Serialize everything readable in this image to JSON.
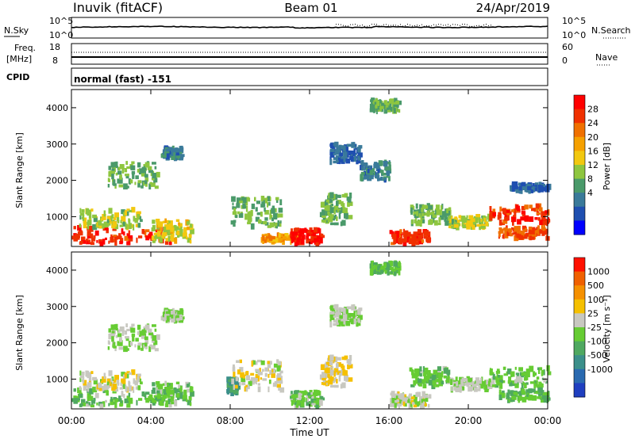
{
  "header": {
    "station": "Inuvik (fitACF)",
    "beam": "Beam 01",
    "date": "24/Apr/2019"
  },
  "sky_panel": {
    "left_label": "N.Sky",
    "right_label": "N.Search",
    "left_ticks": [
      "10^5",
      "10^0"
    ],
    "right_ticks": [
      "10^5",
      "10^0"
    ]
  },
  "freq_panel": {
    "left_label_1": "Freq.",
    "left_label_2": "[MHz]",
    "right_label": "Nave",
    "left_ticks": [
      "18",
      "8"
    ],
    "right_ticks": [
      "60",
      "0"
    ]
  },
  "cpid": {
    "label": "CPID",
    "value": "normal (fast) -151"
  },
  "power_panel": {
    "ylabel": "Slant Range [km]",
    "yticks": [
      "4000",
      "3000",
      "2000",
      "1000"
    ],
    "colorbar_label": "Power [dB]",
    "colorbar_ticks": [
      "28",
      "24",
      "20",
      "16",
      "12",
      "8",
      "4"
    ],
    "colors": [
      "#0000ff",
      "#1f4fb0",
      "#3a7a9a",
      "#4a9a6a",
      "#8ec63f",
      "#f2c80f",
      "#f5a000",
      "#f07000",
      "#f03000",
      "#ff0000"
    ]
  },
  "velocity_panel": {
    "ylabel": "Slant Range [km]",
    "yticks": [
      "4000",
      "3000",
      "2000",
      "1000"
    ],
    "colorbar_label": "Velocity [m s⁻¹]",
    "colorbar_ticks": [
      "1000",
      "500",
      "100",
      "25",
      "-25",
      "-100",
      "-500",
      "-1000"
    ],
    "colors": [
      "#1f3fc0",
      "#2a6ab0",
      "#3b8f8a",
      "#4fa860",
      "#66cc33",
      "#c8c8c0",
      "#f5c000",
      "#f59000",
      "#f06000",
      "#ff1000"
    ]
  },
  "xaxis": {
    "label": "Time UT",
    "ticks": [
      "00:00",
      "04:00",
      "08:00",
      "12:00",
      "16:00",
      "20:00",
      "00:00"
    ]
  },
  "chart_data": [
    {
      "type": "heatmap",
      "title": "Power [dB]",
      "xlabel": "Time UT",
      "ylabel": "Slant Range [km]",
      "xlim": [
        0,
        24
      ],
      "ylim": [
        180,
        4500
      ],
      "scale": [
        0,
        30
      ],
      "blobs": [
        {
          "t": [
            0.0,
            5.0
          ],
          "r": [
            250,
            700
          ],
          "value": 26
        },
        {
          "t": [
            0.3,
            3.5
          ],
          "r": [
            700,
            1200
          ],
          "value": 14
        },
        {
          "t": [
            4.0,
            6.0
          ],
          "r": [
            300,
            900
          ],
          "value": 16
        },
        {
          "t": [
            1.8,
            4.3
          ],
          "r": [
            1800,
            2500
          ],
          "value": 12
        },
        {
          "t": [
            4.5,
            5.5
          ],
          "r": [
            2600,
            2900
          ],
          "value": 8
        },
        {
          "t": [
            8.0,
            10.5
          ],
          "r": [
            700,
            1500
          ],
          "value": 12
        },
        {
          "t": [
            9.5,
            11.5
          ],
          "r": [
            300,
            500
          ],
          "value": 20
        },
        {
          "t": [
            11.0,
            12.6
          ],
          "r": [
            250,
            650
          ],
          "value": 28
        },
        {
          "t": [
            12.5,
            14.0
          ],
          "r": [
            800,
            1600
          ],
          "value": 12
        },
        {
          "t": [
            13.0,
            14.5
          ],
          "r": [
            2500,
            3000
          ],
          "value": 6
        },
        {
          "t": [
            14.5,
            16.0
          ],
          "r": [
            2000,
            2500
          ],
          "value": 8
        },
        {
          "t": [
            15.0,
            16.5
          ],
          "r": [
            3900,
            4200
          ],
          "value": 12
        },
        {
          "t": [
            16.0,
            18.0
          ],
          "r": [
            250,
            600
          ],
          "value": 26
        },
        {
          "t": [
            17.0,
            19.0
          ],
          "r": [
            800,
            1300
          ],
          "value": 12
        },
        {
          "t": [
            19.0,
            21.0
          ],
          "r": [
            700,
            1000
          ],
          "value": 14
        },
        {
          "t": [
            21.0,
            24.0
          ],
          "r": [
            800,
            1300
          ],
          "value": 26
        },
        {
          "t": [
            21.5,
            24.0
          ],
          "r": [
            400,
            700
          ],
          "value": 24
        },
        {
          "t": [
            22.0,
            24.0
          ],
          "r": [
            1700,
            1900
          ],
          "value": 6
        }
      ]
    },
    {
      "type": "heatmap",
      "title": "Velocity [m s⁻¹]",
      "xlabel": "Time UT",
      "ylabel": "Slant Range [km]",
      "xlim": [
        0,
        24
      ],
      "ylim": [
        180,
        4500
      ],
      "scale": [
        -1000,
        1000
      ],
      "blobs": [
        {
          "t": [
            0.0,
            5.0
          ],
          "r": [
            250,
            700
          ],
          "value": -150
        },
        {
          "t": [
            0.3,
            3.5
          ],
          "r": [
            700,
            1200
          ],
          "value": 120
        },
        {
          "t": [
            4.0,
            6.0
          ],
          "r": [
            300,
            900
          ],
          "value": -120
        },
        {
          "t": [
            1.8,
            4.3
          ],
          "r": [
            1800,
            2500
          ],
          "value": 0
        },
        {
          "t": [
            4.5,
            5.5
          ],
          "r": [
            2600,
            2900
          ],
          "value": 0
        },
        {
          "t": [
            7.8,
            8.3
          ],
          "r": [
            600,
            1000
          ],
          "value": -400
        },
        {
          "t": [
            8.0,
            10.5
          ],
          "r": [
            700,
            1500
          ],
          "value": 150
        },
        {
          "t": [
            11.0,
            12.6
          ],
          "r": [
            250,
            650
          ],
          "value": -120
        },
        {
          "t": [
            12.5,
            14.0
          ],
          "r": [
            800,
            1600
          ],
          "value": 200
        },
        {
          "t": [
            13.0,
            14.5
          ],
          "r": [
            2500,
            3000
          ],
          "value": 0
        },
        {
          "t": [
            15.0,
            16.5
          ],
          "r": [
            3900,
            4200
          ],
          "value": -200
        },
        {
          "t": [
            16.0,
            18.0
          ],
          "r": [
            250,
            600
          ],
          "value": 60
        },
        {
          "t": [
            17.0,
            19.0
          ],
          "r": [
            800,
            1300
          ],
          "value": -150
        },
        {
          "t": [
            19.0,
            21.0
          ],
          "r": [
            700,
            1000
          ],
          "value": 0
        },
        {
          "t": [
            21.0,
            24.0
          ],
          "r": [
            800,
            1300
          ],
          "value": -150
        },
        {
          "t": [
            21.5,
            24.0
          ],
          "r": [
            400,
            700
          ],
          "value": -200
        }
      ]
    }
  ]
}
